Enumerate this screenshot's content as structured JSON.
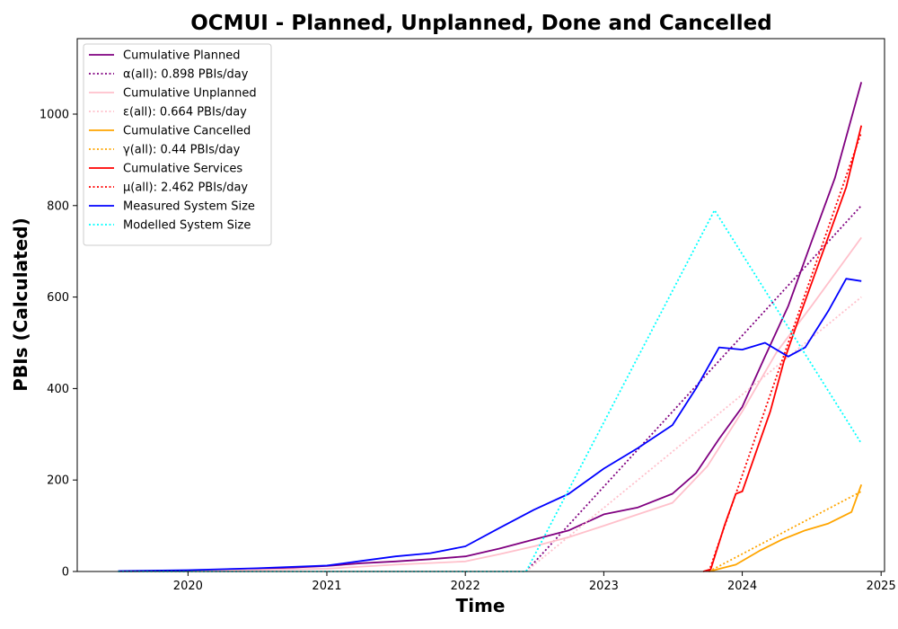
{
  "chart_data": {
    "type": "line",
    "title": "OCMUI - Planned, Unplanned, Done  and Cancelled",
    "xlabel": "Time",
    "ylabel": "PBIs (Calculated)",
    "xlim": [
      "2019-03-15",
      "2025-01-10"
    ],
    "ylim": [
      0,
      1165
    ],
    "xticks": [
      "2020",
      "2021",
      "2022",
      "2023",
      "2024",
      "2025"
    ],
    "yticks": [
      0,
      200,
      400,
      600,
      800,
      1000
    ],
    "grid": false,
    "legend_position": "upper-left",
    "series": [
      {
        "name": "Cumulative Planned",
        "color": "#800080",
        "style": "solid",
        "points": [
          [
            "2019-07-01",
            0
          ],
          [
            "2020-01-01",
            2
          ],
          [
            "2020-07-01",
            5
          ],
          [
            "2021-01-01",
            12
          ],
          [
            "2021-04-01",
            18
          ],
          [
            "2021-07-01",
            22
          ],
          [
            "2021-10-01",
            27
          ],
          [
            "2022-01-01",
            33
          ],
          [
            "2022-04-01",
            50
          ],
          [
            "2022-07-01",
            70
          ],
          [
            "2022-10-01",
            90
          ],
          [
            "2023-01-01",
            125
          ],
          [
            "2023-04-01",
            140
          ],
          [
            "2023-07-01",
            170
          ],
          [
            "2023-09-01",
            215
          ],
          [
            "2023-11-01",
            290
          ],
          [
            "2024-01-01",
            360
          ],
          [
            "2024-03-01",
            470
          ],
          [
            "2024-05-01",
            580
          ],
          [
            "2024-07-01",
            720
          ],
          [
            "2024-09-01",
            860
          ],
          [
            "2024-11-10",
            1070
          ]
        ]
      },
      {
        "name": "α(all): 0.898 PBIs/day",
        "color": "#800080",
        "style": "dotted",
        "points": [
          [
            "2022-06-10",
            0
          ],
          [
            "2024-11-10",
            800
          ]
        ]
      },
      {
        "name": "Cumulative Unplanned",
        "color": "#ffc0cb",
        "style": "solid",
        "points": [
          [
            "2019-07-01",
            0
          ],
          [
            "2020-01-01",
            1
          ],
          [
            "2021-01-01",
            6
          ],
          [
            "2021-07-01",
            15
          ],
          [
            "2022-01-01",
            22
          ],
          [
            "2022-04-01",
            38
          ],
          [
            "2022-07-01",
            55
          ],
          [
            "2022-10-01",
            75
          ],
          [
            "2023-01-01",
            100
          ],
          [
            "2023-04-01",
            125
          ],
          [
            "2023-07-01",
            150
          ],
          [
            "2023-10-01",
            230
          ],
          [
            "2024-01-01",
            350
          ],
          [
            "2024-04-01",
            480
          ],
          [
            "2024-07-01",
            580
          ],
          [
            "2024-11-10",
            730
          ]
        ]
      },
      {
        "name": "ε(all): 0.664 PBIs/day",
        "color": "#ffc0cb",
        "style": "dotted",
        "points": [
          [
            "2022-06-10",
            0
          ],
          [
            "2024-11-10",
            600
          ]
        ]
      },
      {
        "name": "Cumulative Cancelled",
        "color": "#ffa500",
        "style": "solid",
        "points": [
          [
            "2023-10-05",
            0
          ],
          [
            "2023-12-15",
            15
          ],
          [
            "2024-02-15",
            45
          ],
          [
            "2024-04-15",
            70
          ],
          [
            "2024-06-15",
            90
          ],
          [
            "2024-08-15",
            105
          ],
          [
            "2024-10-15",
            130
          ],
          [
            "2024-11-10",
            190
          ]
        ]
      },
      {
        "name": "γ(all): 0.44 PBIs/day",
        "color": "#ffa500",
        "style": "dotted",
        "points": [
          [
            "2023-10-05",
            0
          ],
          [
            "2024-11-10",
            175
          ]
        ]
      },
      {
        "name": "Cumulative Services",
        "color": "#ff0000",
        "style": "solid",
        "points": [
          [
            "2023-09-20",
            0
          ],
          [
            "2023-10-10",
            5
          ],
          [
            "2023-11-15",
            100
          ],
          [
            "2023-12-15",
            170
          ],
          [
            "2024-01-01",
            175
          ],
          [
            "2024-02-10",
            270
          ],
          [
            "2024-03-15",
            350
          ],
          [
            "2024-04-20",
            460
          ],
          [
            "2024-06-01",
            560
          ],
          [
            "2024-08-01",
            700
          ],
          [
            "2024-10-01",
            840
          ],
          [
            "2024-11-10",
            975
          ]
        ]
      },
      {
        "name": "μ(all): 2.462 PBIs/day",
        "color": "#ff0000",
        "style": "dotted",
        "points": [
          [
            "2023-10-05",
            0
          ],
          [
            "2024-11-10",
            960
          ]
        ]
      },
      {
        "name": "Measured System Size",
        "color": "#0000ff",
        "style": "solid",
        "points": [
          [
            "2019-07-01",
            1
          ],
          [
            "2020-01-01",
            3
          ],
          [
            "2020-07-01",
            7
          ],
          [
            "2021-01-01",
            13
          ],
          [
            "2021-04-01",
            23
          ],
          [
            "2021-07-01",
            33
          ],
          [
            "2021-10-01",
            40
          ],
          [
            "2022-01-01",
            55
          ],
          [
            "2022-04-01",
            95
          ],
          [
            "2022-07-01",
            135
          ],
          [
            "2022-10-01",
            170
          ],
          [
            "2023-01-01",
            225
          ],
          [
            "2023-04-01",
            270
          ],
          [
            "2023-07-01",
            320
          ],
          [
            "2023-09-01",
            400
          ],
          [
            "2023-11-01",
            490
          ],
          [
            "2024-01-01",
            485
          ],
          [
            "2024-03-01",
            500
          ],
          [
            "2024-05-01",
            470
          ],
          [
            "2024-06-15",
            490
          ],
          [
            "2024-08-15",
            570
          ],
          [
            "2024-10-01",
            640
          ],
          [
            "2024-11-10",
            635
          ]
        ]
      },
      {
        "name": "Modelled System Size",
        "color": "#00ffff",
        "style": "dotted",
        "points": [
          [
            "2019-07-01",
            0
          ],
          [
            "2022-06-10",
            0
          ],
          [
            "2023-10-20",
            790
          ],
          [
            "2024-11-10",
            280
          ]
        ]
      }
    ]
  }
}
